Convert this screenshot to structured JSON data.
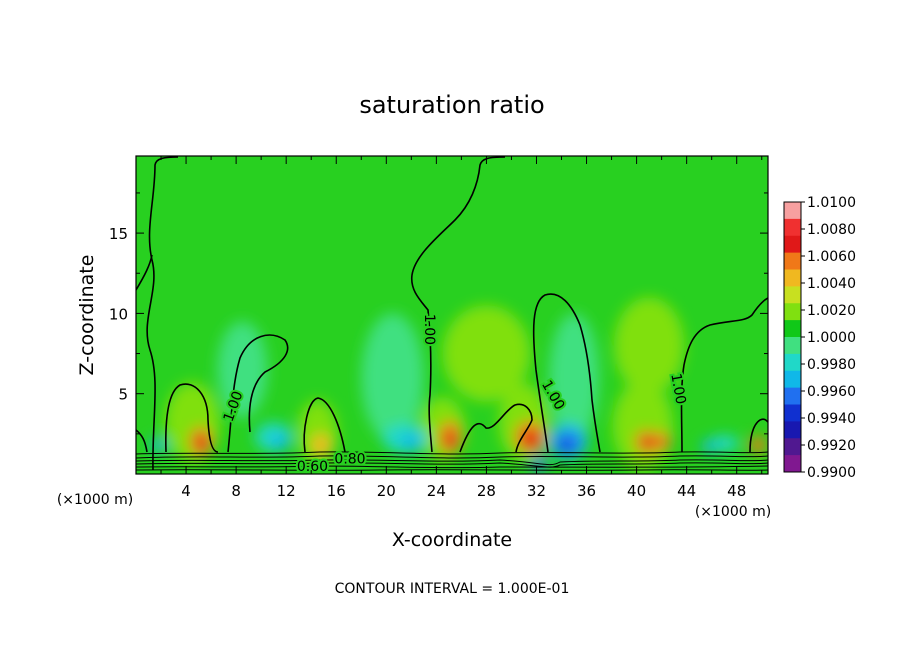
{
  "chart_data": {
    "type": "heatmap",
    "title": "saturation ratio",
    "xlabel": "X-coordinate",
    "ylabel": "Z-coordinate",
    "x_unit_left": "(×1000 m)",
    "x_unit_right": "(×1000 m)",
    "footer": "CONTOUR INTERVAL = 1.000E-01",
    "xlim": [
      0,
      50.5
    ],
    "ylim": [
      0,
      19.8
    ],
    "x_ticks": [
      4,
      8,
      12,
      16,
      20,
      24,
      28,
      32,
      36,
      40,
      44,
      48
    ],
    "y_ticks": [
      5,
      10,
      15
    ],
    "colorbar": {
      "min": 0.99,
      "max": 1.01,
      "tick_labels": [
        "1.0100",
        "1.0080",
        "1.0060",
        "1.0040",
        "1.0020",
        "1.0000",
        "0.9980",
        "0.9960",
        "0.9940",
        "0.9920",
        "0.9900"
      ],
      "colors": [
        "#f7a0a0",
        "#f03030",
        "#e01818",
        "#f07818",
        "#f0b820",
        "#c8e020",
        "#80e010",
        "#10c818",
        "#40e080",
        "#20d8c8",
        "#10b8e8",
        "#2070f0",
        "#1030d0",
        "#1818b0",
        "#501890",
        "#801890"
      ]
    },
    "background_color": "#28d020",
    "contour_labels": [
      {
        "text": "1.00",
        "x": 23.4,
        "y": 9.0,
        "rotate": 90
      },
      {
        "text": "1.00",
        "x": 33.3,
        "y": 4.9,
        "rotate": 60
      },
      {
        "text": "1.00",
        "x": 43.3,
        "y": 5.3,
        "rotate": 80
      },
      {
        "text": "1.00",
        "x": 7.8,
        "y": 4.2,
        "rotate": -70
      },
      {
        "text": "0.80",
        "x": 17.1,
        "y": 0.9,
        "rotate": 0
      },
      {
        "text": "0.60",
        "x": 14.1,
        "y": 0.45,
        "rotate": 0
      }
    ],
    "blobs": [
      {
        "x": 4.5,
        "y": 3.2,
        "rx": 2.2,
        "ry": 2.5,
        "color": "#80e010"
      },
      {
        "x": 14.5,
        "y": 2.6,
        "rx": 1.6,
        "ry": 2.0,
        "color": "#80e010"
      },
      {
        "x": 24.5,
        "y": 2.8,
        "rx": 1.8,
        "ry": 2.0,
        "color": "#80e010"
      },
      {
        "x": 31.0,
        "y": 3.2,
        "rx": 2.0,
        "ry": 2.4,
        "color": "#80e010"
      },
      {
        "x": 40.5,
        "y": 3.0,
        "rx": 2.4,
        "ry": 2.8,
        "color": "#80e010"
      },
      {
        "x": 28.0,
        "y": 7.5,
        "rx": 3.5,
        "ry": 3.0,
        "color": "#80e010"
      },
      {
        "x": 41.0,
        "y": 8.0,
        "rx": 2.8,
        "ry": 3.0,
        "color": "#80e010"
      },
      {
        "x": 8.5,
        "y": 6.5,
        "rx": 2.0,
        "ry": 3.0,
        "color": "#40e080"
      },
      {
        "x": 20.5,
        "y": 6.0,
        "rx": 2.5,
        "ry": 4.0,
        "color": "#40e080"
      },
      {
        "x": 35.0,
        "y": 6.0,
        "rx": 2.0,
        "ry": 4.0,
        "color": "#40e080"
      },
      {
        "x": 5.2,
        "y": 2.0,
        "rx": 0.9,
        "ry": 0.9,
        "color": "#f07818"
      },
      {
        "x": 5.2,
        "y": 1.9,
        "rx": 0.5,
        "ry": 0.5,
        "color": "#e01818"
      },
      {
        "x": 14.8,
        "y": 1.8,
        "rx": 0.8,
        "ry": 0.7,
        "color": "#f0b820"
      },
      {
        "x": 25.1,
        "y": 2.3,
        "rx": 0.9,
        "ry": 1.0,
        "color": "#f07818"
      },
      {
        "x": 25.1,
        "y": 2.0,
        "rx": 0.5,
        "ry": 0.6,
        "color": "#e01818"
      },
      {
        "x": 31.5,
        "y": 2.3,
        "rx": 1.2,
        "ry": 1.0,
        "color": "#f07818"
      },
      {
        "x": 31.5,
        "y": 2.1,
        "rx": 0.7,
        "ry": 0.6,
        "color": "#e01818"
      },
      {
        "x": 40.8,
        "y": 2.0,
        "rx": 0.9,
        "ry": 0.7,
        "color": "#f07818"
      },
      {
        "x": 40.9,
        "y": 1.9,
        "rx": 0.45,
        "ry": 0.45,
        "color": "#e01818"
      },
      {
        "x": 42.1,
        "y": 2.0,
        "rx": 0.6,
        "ry": 0.6,
        "color": "#f07818"
      },
      {
        "x": 49.7,
        "y": 1.8,
        "rx": 0.6,
        "ry": 0.6,
        "color": "#f07818"
      },
      {
        "x": 11.0,
        "y": 2.3,
        "rx": 1.5,
        "ry": 0.9,
        "color": "#20d8c8"
      },
      {
        "x": 11.5,
        "y": 2.0,
        "rx": 0.7,
        "ry": 0.5,
        "color": "#10b8e8"
      },
      {
        "x": 21.5,
        "y": 2.2,
        "rx": 1.8,
        "ry": 0.9,
        "color": "#20d8c8"
      },
      {
        "x": 22.0,
        "y": 2.0,
        "rx": 0.8,
        "ry": 0.5,
        "color": "#10b8e8"
      },
      {
        "x": 34.5,
        "y": 2.0,
        "rx": 1.6,
        "ry": 1.1,
        "color": "#10b8e8"
      },
      {
        "x": 34.5,
        "y": 1.9,
        "rx": 1.0,
        "ry": 0.7,
        "color": "#2070f0"
      },
      {
        "x": 34.2,
        "y": 1.7,
        "rx": 0.5,
        "ry": 0.4,
        "color": "#1030d0"
      },
      {
        "x": 32.2,
        "y": 0.6,
        "rx": 0.6,
        "ry": 0.5,
        "color": "#2070f0"
      },
      {
        "x": 1.8,
        "y": 1.8,
        "rx": 0.7,
        "ry": 0.4,
        "color": "#10b8e8"
      },
      {
        "x": 47.0,
        "y": 1.9,
        "rx": 1.2,
        "ry": 0.5,
        "color": "#20d8c8"
      },
      {
        "x": 45.8,
        "y": 1.7,
        "rx": 0.6,
        "ry": 0.4,
        "color": "#10b8e8"
      }
    ]
  }
}
